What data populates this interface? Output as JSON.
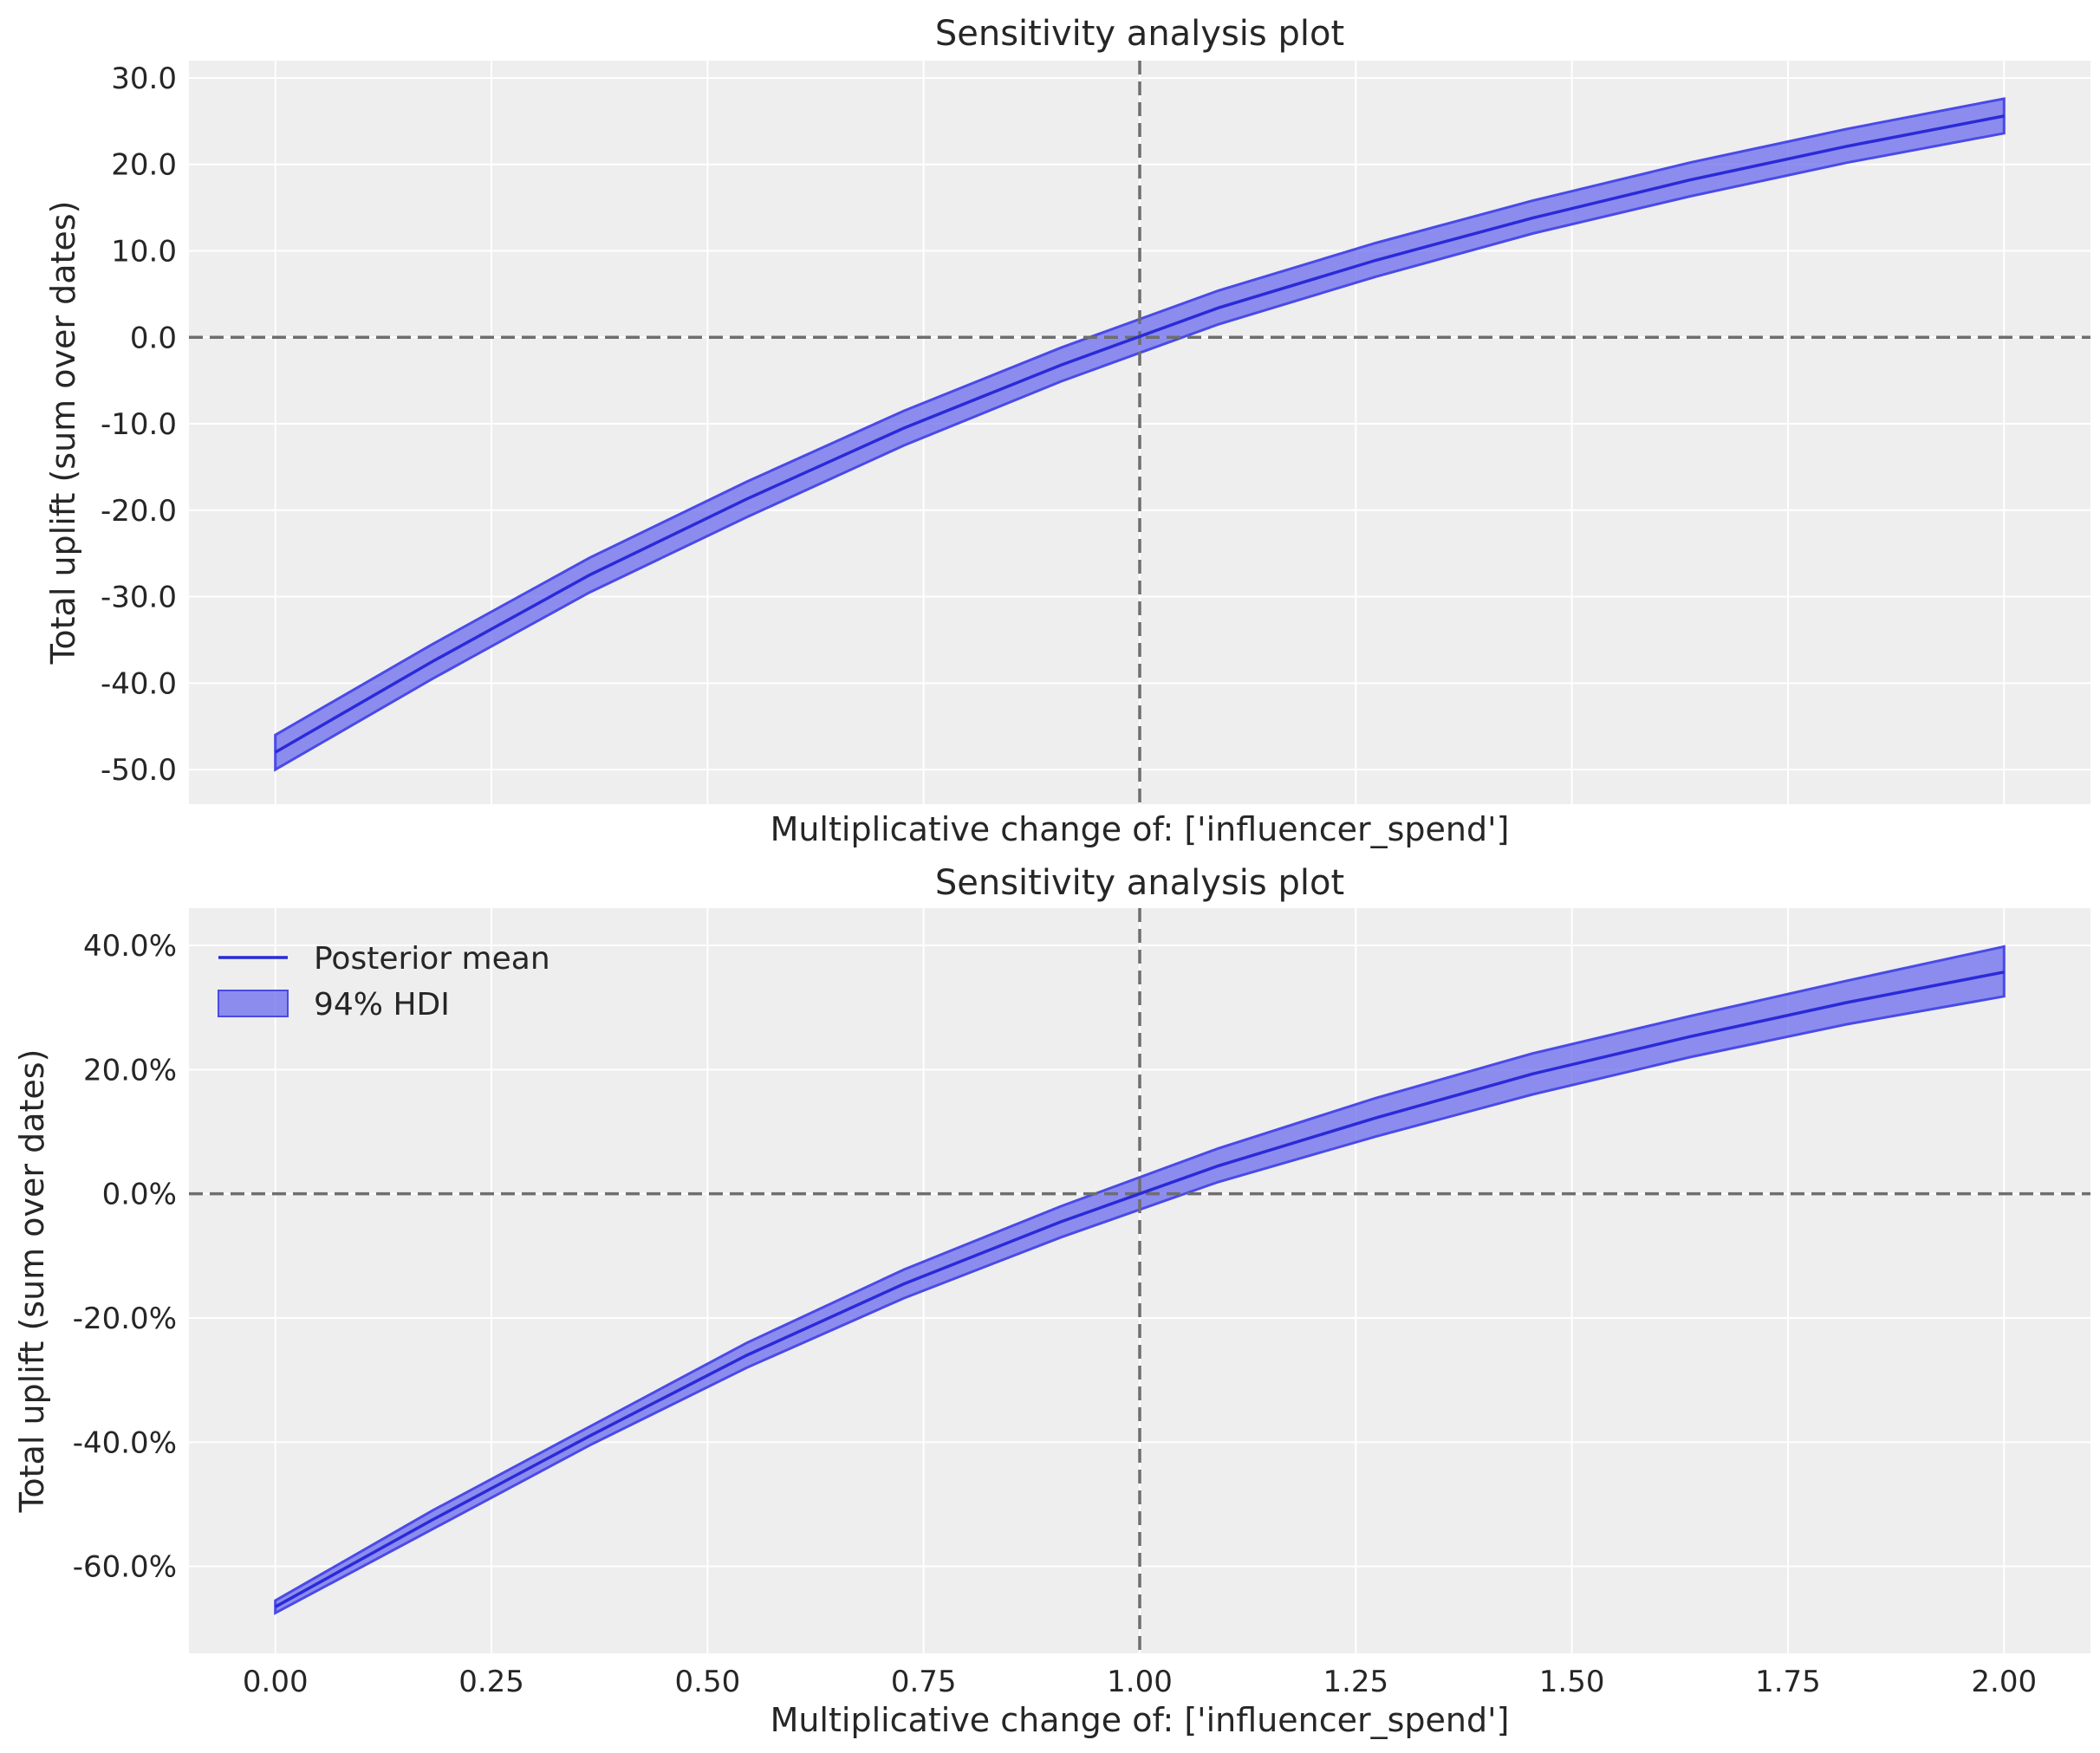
{
  "chart_data": [
    {
      "type": "line",
      "title": "Sensitivity analysis plot",
      "xlabel": "Multiplicative change of: ['influencer_spend']",
      "ylabel": "Total uplift (sum over dates)",
      "xlim": [
        -0.1,
        2.1
      ],
      "ylim": [
        -54,
        32
      ],
      "x_ticks": [
        0.0,
        0.25,
        0.5,
        0.75,
        1.0,
        1.25,
        1.5,
        1.75,
        2.0
      ],
      "x_tick_labels": [
        "",
        "",
        "",
        "",
        "",
        "",
        "",
        "",
        ""
      ],
      "y_ticks": [
        -50,
        -40,
        -30,
        -20,
        -10,
        0,
        10,
        20,
        30
      ],
      "y_tick_labels": [
        "-50.0",
        "-40.0",
        "-30.0",
        "-20.0",
        "-10.0",
        "0.0",
        "10.0",
        "20.0",
        "30.0"
      ],
      "grid": true,
      "reference_lines": {
        "vertical_x": 1.0,
        "horizontal_y": 0.0
      },
      "x": [
        0.0,
        0.1818,
        0.3636,
        0.5455,
        0.7273,
        0.9091,
        1.0909,
        1.2727,
        1.4545,
        1.6364,
        1.8182,
        2.0
      ],
      "series": [
        {
          "name": "Posterior mean",
          "values": [
            -48,
            -37.5,
            -27.5,
            -18.7,
            -10.5,
            -3.2,
            3.4,
            8.9,
            13.8,
            18.2,
            22.1,
            25.6
          ]
        },
        {
          "name": "94% HDI",
          "lower": [
            -50,
            -39.5,
            -29.5,
            -20.8,
            -12.5,
            -5.1,
            1.5,
            7.0,
            12.0,
            16.3,
            20.2,
            23.6
          ],
          "upper": [
            -46,
            -35.5,
            -25.5,
            -16.7,
            -8.5,
            -1.2,
            5.4,
            10.9,
            15.8,
            20.2,
            24.1,
            27.6
          ]
        }
      ],
      "colors": {
        "line": "#2a2ad8",
        "band": "#6b6bee",
        "reference": "#6e6e6e",
        "background": "#eeeeee",
        "grid": "#ffffff"
      }
    },
    {
      "type": "line",
      "title": "Sensitivity analysis plot",
      "xlabel": "Multiplicative change of: ['influencer_spend']",
      "ylabel": "Total uplift (sum over dates)",
      "xlim": [
        -0.1,
        2.1
      ],
      "ylim": [
        -74,
        46
      ],
      "x_ticks": [
        0.0,
        0.25,
        0.5,
        0.75,
        1.0,
        1.25,
        1.5,
        1.75,
        2.0
      ],
      "x_tick_labels": [
        "0.00",
        "0.25",
        "0.50",
        "0.75",
        "1.00",
        "1.25",
        "1.50",
        "1.75",
        "2.00"
      ],
      "y_ticks": [
        -60,
        -40,
        -20,
        0,
        20,
        40
      ],
      "y_tick_labels": [
        "-60.0%",
        "-40.0%",
        "-20.0%",
        "0.0%",
        "20.0%",
        "40.0%"
      ],
      "grid": true,
      "legend": {
        "placement": "top-left",
        "entries": [
          "Posterior mean",
          "94% HDI"
        ]
      },
      "reference_lines": {
        "vertical_x": 1.0,
        "horizontal_y": 0.0
      },
      "x": [
        0.0,
        0.1818,
        0.3636,
        0.5455,
        0.7273,
        0.9091,
        1.0909,
        1.2727,
        1.4545,
        1.6364,
        1.8182,
        2.0
      ],
      "series": [
        {
          "name": "Posterior mean",
          "values": [
            -66.5,
            -52.5,
            -39,
            -26,
            -14.5,
            -4.5,
            4.5,
            12.2,
            19.3,
            25.3,
            30.8,
            35.7
          ]
        },
        {
          "name": "94% HDI",
          "lower": [
            -67.5,
            -54,
            -40.5,
            -28,
            -16.8,
            -7,
            1.9,
            9.2,
            16,
            22,
            27.3,
            31.8
          ],
          "upper": [
            -65.5,
            -51,
            -37.5,
            -24,
            -12.2,
            -2,
            7.3,
            15.4,
            22.6,
            28.6,
            34.3,
            39.8
          ]
        }
      ],
      "colors": {
        "line": "#2a2ad8",
        "band": "#6b6bee",
        "reference": "#6e6e6e",
        "background": "#eeeeee",
        "grid": "#ffffff"
      }
    }
  ]
}
